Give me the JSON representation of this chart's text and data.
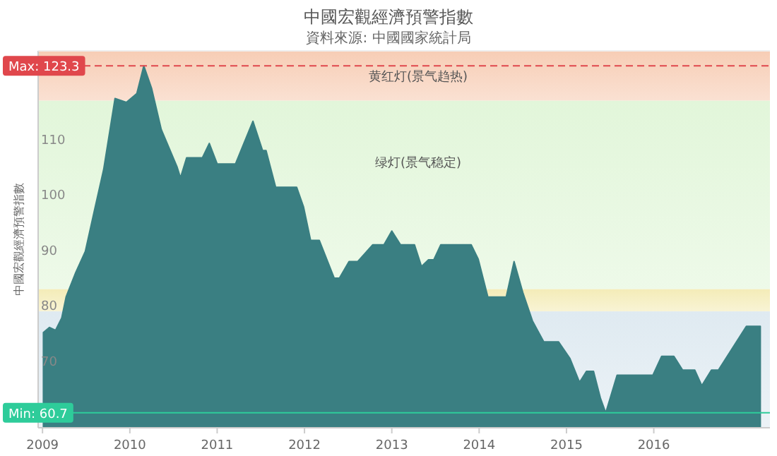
{
  "chart_data": {
    "type": "area",
    "title": "中國宏觀經濟預警指數",
    "subtitle": "資料來源: 中國國家統計局",
    "ylabel": "中國宏觀經濟預警指數",
    "x": [
      2009.01,
      2009.08,
      2009.15,
      2009.22,
      2009.27,
      2009.38,
      2009.49,
      2009.59,
      2009.7,
      2009.83,
      2009.96,
      2010.08,
      2010.16,
      2010.25,
      2010.36,
      2010.54,
      2010.58,
      2010.65,
      2010.83,
      2010.91,
      2011.0,
      2011.21,
      2011.41,
      2011.52,
      2011.56,
      2011.67,
      2011.91,
      2011.99,
      2012.07,
      2012.17,
      2012.34,
      2012.4,
      2012.51,
      2012.61,
      2012.78,
      2012.91,
      2013.0,
      2013.1,
      2013.26,
      2013.34,
      2013.42,
      2013.48,
      2013.56,
      2013.91,
      2013.99,
      2014.1,
      2014.31,
      2014.4,
      2014.5,
      2014.61,
      2014.74,
      2014.91,
      2015.04,
      2015.15,
      2015.23,
      2015.31,
      2015.39,
      2015.45,
      2015.58,
      2015.99,
      2016.09,
      2016.23,
      2016.33,
      2016.47,
      2016.55,
      2016.66,
      2016.74,
      2017.06,
      2017.22
    ],
    "series": [
      {
        "color": "#3a7f82",
        "values": [
          75.2,
          76.1,
          75.6,
          77.8,
          81.6,
          86,
          89.8,
          96.9,
          104.6,
          117.4,
          116.7,
          118.3,
          123.3,
          119.2,
          111.8,
          105.1,
          103.1,
          106.7,
          106.7,
          109.3,
          105.6,
          105.6,
          113.3,
          108,
          108,
          101.4,
          101.4,
          97.8,
          91.8,
          91.8,
          85,
          85,
          88,
          88,
          91,
          91,
          93.5,
          91,
          91,
          87.1,
          88.3,
          88.3,
          91,
          91,
          88.4,
          81.6,
          81.6,
          88,
          82.4,
          77.3,
          73.5,
          73.5,
          70.5,
          66.2,
          68.2,
          68.2,
          63.3,
          60.7,
          67.5,
          67.5,
          70.9,
          70.9,
          68.4,
          68.4,
          65.6,
          68.4,
          68.4,
          76.3,
          76.3
        ]
      }
    ],
    "xlim": [
      2008.95,
      2017.33
    ],
    "xticks": [
      2009,
      2010,
      2011,
      2012,
      2013,
      2014,
      2015,
      2016
    ],
    "ylim": [
      58,
      126
    ],
    "yticks": [
      70,
      80,
      90,
      100,
      110
    ],
    "ref_lines": [
      {
        "axis": "y",
        "value": 123.3,
        "label": "Max: 123.3",
        "color": "#e0474c",
        "line_style": "dashed"
      },
      {
        "axis": "y",
        "value": 60.7,
        "label": "Min: 60.7",
        "color": "#2ecc9a",
        "line_style": "solid"
      }
    ],
    "bands": [
      {
        "axis": "y",
        "from": 117,
        "to": 126,
        "label": "黄红灯(景气趋热)",
        "color": "#f7cdb5"
      },
      {
        "axis": "y",
        "from": 83,
        "to": 117,
        "label": "绿灯(景气稳定)",
        "color": "#e2f6da"
      },
      {
        "axis": "y",
        "from": 79,
        "to": 83,
        "color": "#f4ecb8"
      },
      {
        "axis": "y",
        "from": 58,
        "to": 79,
        "color": "#dfeaf1"
      }
    ],
    "grid": false
  }
}
